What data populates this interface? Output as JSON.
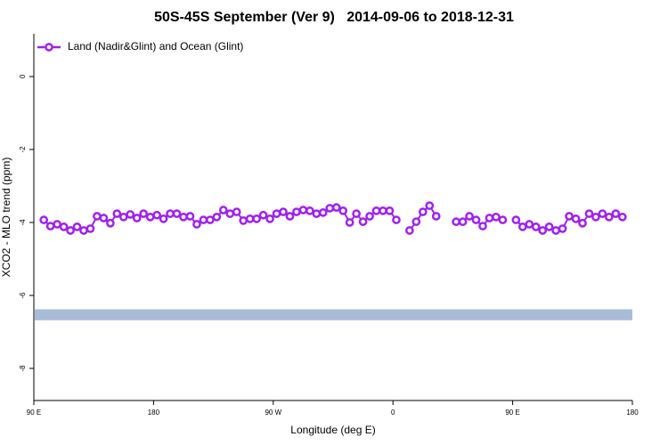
{
  "chart_data": {
    "type": "line",
    "title": "50S-45S September (Ver 9)   2014-09-06 to 2018-12-31",
    "x_label": "Longitude (deg E)",
    "y_label": "XCO2 - MLO trend (ppm)",
    "xlim": [
      90,
      540
    ],
    "xticks": [
      {
        "value": 90,
        "label": "90 E"
      },
      180,
      {
        "value": 270,
        "label": "90 W"
      },
      {
        "value": 360,
        "label": "0"
      },
      {
        "value": 450,
        "label": "90 E"
      },
      {
        "value": 540,
        "label": "180"
      }
    ],
    "ylim": [
      -8.88,
      1.17
    ],
    "yticks": [
      0,
      -2,
      -4,
      -6,
      -8
    ],
    "legend": "top-left",
    "band": {
      "range": [
        -6.38,
        -6.68
      ],
      "color": "#a8bcd8"
    },
    "x": [
      97.5,
      102.5,
      107.5,
      112.5,
      117.5,
      122.5,
      127.5,
      132.5,
      137.5,
      142.5,
      147.5,
      152.5,
      157.5,
      162.5,
      167.5,
      172.5,
      177.5,
      182.5,
      187.5,
      192.5,
      197.5,
      202.5,
      207.5,
      212.5,
      217.5,
      222.5,
      227.5,
      232.5,
      237.5,
      242.5,
      247.5,
      252.5,
      257.5,
      262.5,
      267.5,
      272.5,
      277.5,
      282.5,
      287.5,
      292.5,
      297.5,
      302.5,
      307.5,
      312.5,
      317.5,
      322.5,
      327.5,
      332.5,
      337.5,
      342.5,
      347.5,
      352.5,
      357.5,
      362.5,
      367.5,
      372.5,
      377.5,
      382.5,
      387.5,
      392.5,
      397.5,
      402.5,
      407.5,
      412.5,
      417.5,
      422.5,
      427.5,
      432.5,
      437.5,
      442.5,
      447.5,
      452.5,
      457.5,
      462.5,
      467.5,
      472.5,
      477.5,
      482.5,
      487.5,
      492.5,
      497.5,
      502.5,
      507.5,
      512.5,
      517.5,
      522.5,
      527.5,
      532.5
    ],
    "series": [
      {
        "name": "Land (Nadir&Glint) and Ocean (Glint)",
        "color": "#a020f0",
        "values": [
          -3.93,
          -4.1,
          -4.05,
          -4.12,
          -4.22,
          -4.12,
          -4.22,
          -4.17,
          -3.83,
          -3.88,
          -4.02,
          -3.76,
          -3.85,
          -3.78,
          -3.88,
          -3.76,
          -3.85,
          -3.8,
          -3.9,
          -3.76,
          -3.76,
          -3.85,
          -3.83,
          -4.05,
          -3.93,
          -3.93,
          -3.85,
          -3.66,
          -3.76,
          -3.71,
          -3.95,
          -3.9,
          -3.9,
          -3.8,
          -3.9,
          -3.76,
          -3.71,
          -3.83,
          -3.71,
          -3.66,
          -3.68,
          -3.76,
          -3.73,
          -3.61,
          -3.59,
          -3.68,
          -4.0,
          -3.76,
          -3.98,
          -3.83,
          -3.68,
          -3.68,
          -3.68,
          -3.93,
          null,
          -4.22,
          -3.98,
          -3.71,
          -3.54,
          -3.83,
          null,
          null,
          -3.98,
          -3.98,
          -3.83,
          -3.93,
          -4.1,
          -3.88,
          -3.85,
          -3.93,
          null,
          -3.93,
          -4.12,
          -4.05,
          -4.12,
          -4.22,
          -4.12,
          -4.22,
          -4.17,
          -3.83,
          -3.9,
          -4.02,
          -3.76,
          -3.85,
          -3.76,
          -3.85,
          -3.76,
          -3.85
        ]
      }
    ]
  }
}
